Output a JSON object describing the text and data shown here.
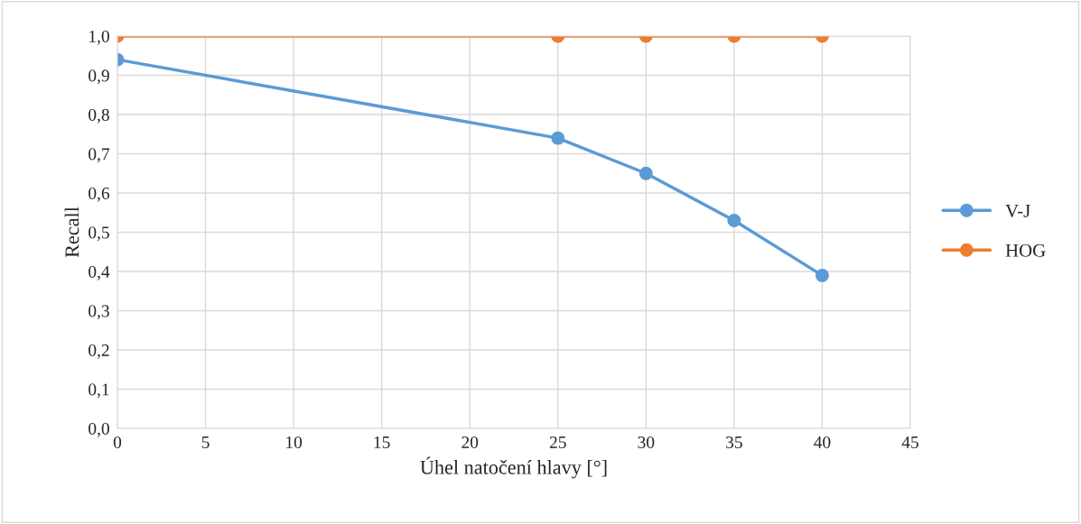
{
  "chart_data": {
    "type": "line",
    "xlabel": "Úhel natočení hlavy [°]",
    "ylabel": "Recall",
    "series": [
      {
        "name": "V-J",
        "color": "#5b9bd5",
        "x": [
          0,
          25,
          30,
          35,
          40
        ],
        "values": [
          0.94,
          0.74,
          0.65,
          0.53,
          0.39
        ]
      },
      {
        "name": "HOG",
        "color": "#ed7d31",
        "x": [
          0,
          25,
          30,
          35,
          40
        ],
        "values": [
          1.0,
          1.0,
          1.0,
          1.0,
          1.0
        ]
      }
    ],
    "xlim": [
      0,
      45
    ],
    "xticks": [
      0,
      5,
      10,
      15,
      20,
      25,
      30,
      35,
      40,
      45
    ],
    "ylim": [
      0,
      1
    ],
    "yticks": [
      {
        "value": 0,
        "label": "0,0"
      },
      {
        "value": 0.1,
        "label": "0,1"
      },
      {
        "value": 0.2,
        "label": "0,2"
      },
      {
        "value": 0.3,
        "label": "0,3"
      },
      {
        "value": 0.4,
        "label": "0,4"
      },
      {
        "value": 0.5,
        "label": "0,5"
      },
      {
        "value": 0.6,
        "label": "0,6"
      },
      {
        "value": 0.7,
        "label": "0,7"
      },
      {
        "value": 0.8,
        "label": "0,8"
      },
      {
        "value": 0.9,
        "label": "0,9"
      },
      {
        "value": 1.0,
        "label": "1,0"
      }
    ],
    "grid": true,
    "legend": "right",
    "marker": "circle",
    "line_style": "solid"
  }
}
